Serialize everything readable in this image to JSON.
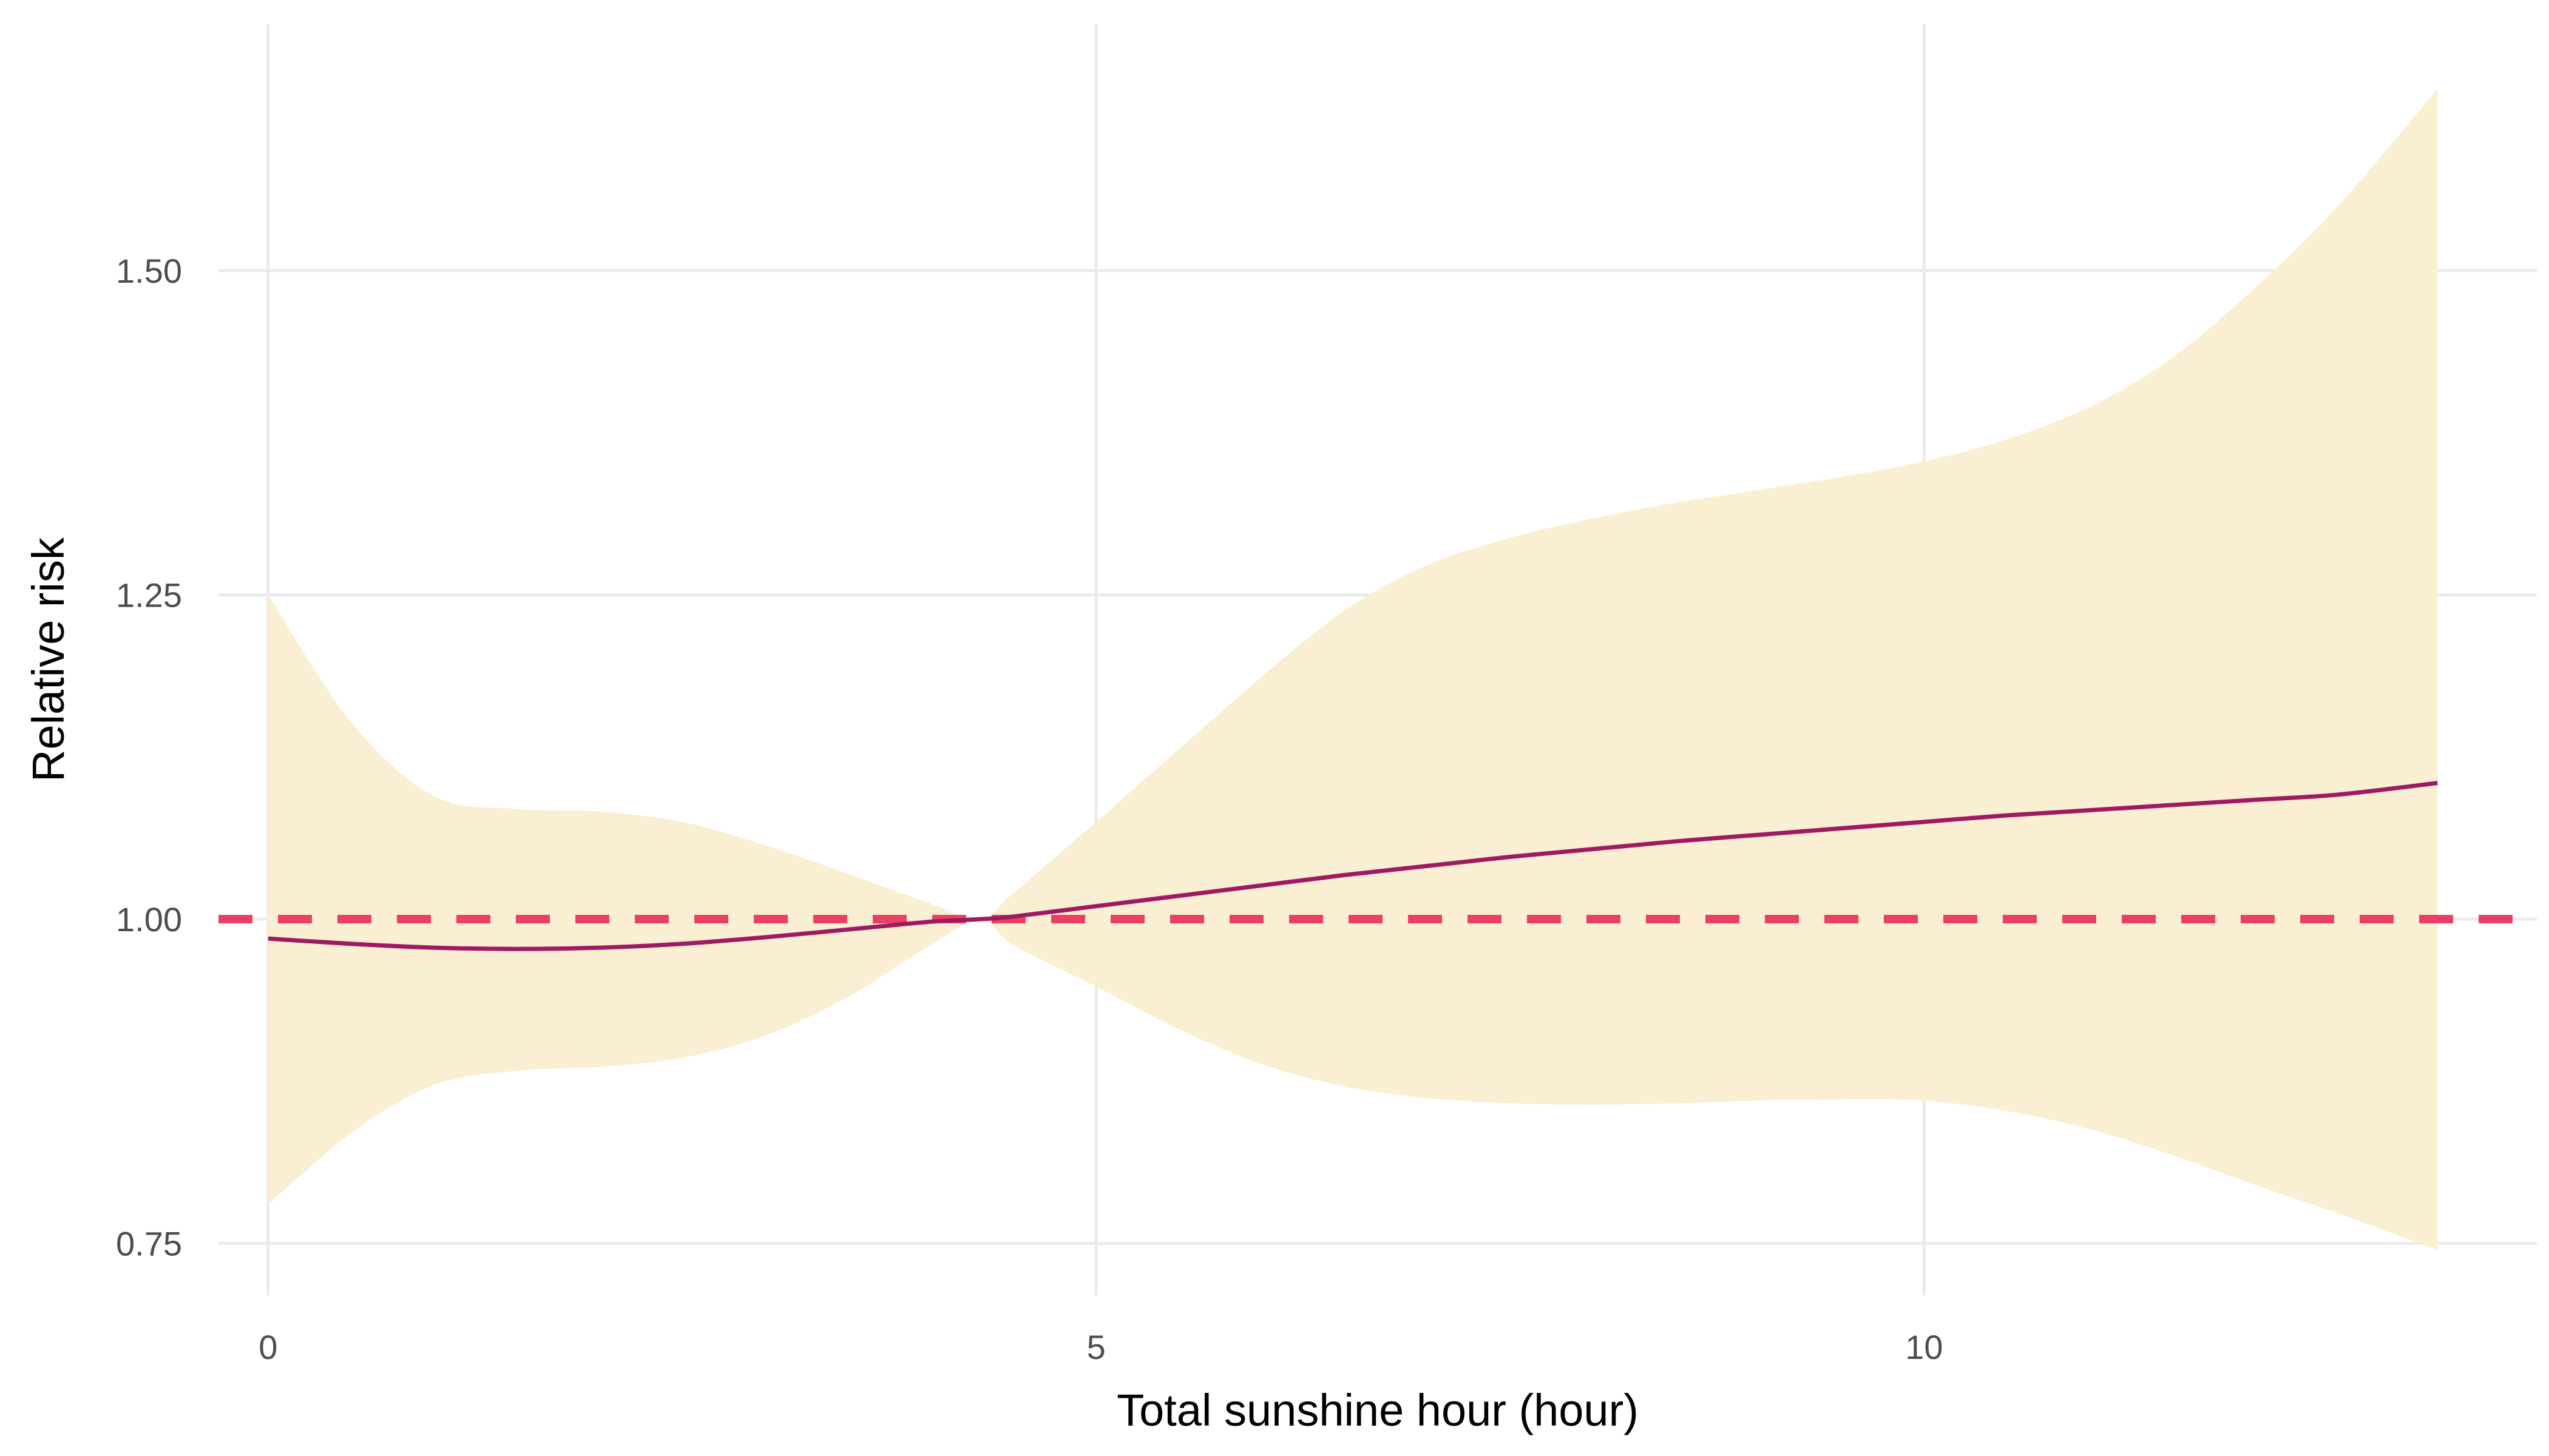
{
  "chart_data": {
    "type": "line",
    "title": "",
    "xlabel": "Total sunshine hour (hour)",
    "ylabel": "Relative risk",
    "xlim": [
      -0.3,
      13.7
    ],
    "ylim": [
      0.71,
      1.69
    ],
    "x_ticks": [
      0,
      5,
      10
    ],
    "x_tick_labels": [
      "0",
      "5",
      "10"
    ],
    "y_ticks": [
      0.75,
      1.0,
      1.25,
      1.5
    ],
    "y_tick_labels": [
      "0.75",
      "1.00",
      "1.25",
      "1.50"
    ],
    "grid": true,
    "reference_line": {
      "y": 1.0,
      "style": "dashed",
      "color": "#e8204f"
    },
    "series": [
      {
        "x": [
          0,
          0.5,
          1,
          1.5,
          2,
          2.5,
          3,
          3.5,
          4,
          4.3,
          4.5,
          5,
          5.5,
          6,
          6.5,
          7,
          7.5,
          8,
          8.5,
          9,
          9.5,
          10,
          10.5,
          11,
          11.5,
          12,
          12.5,
          13.1
        ],
        "y": [
          0.985,
          0.981,
          0.978,
          0.977,
          0.978,
          0.981,
          0.986,
          0.992,
          0.998,
          1.0,
          1.002,
          1.01,
          1.018,
          1.026,
          1.034,
          1.041,
          1.048,
          1.054,
          1.06,
          1.065,
          1.07,
          1.075,
          1.08,
          1.084,
          1.088,
          1.092,
          1.096,
          1.105
        ],
        "color": "#a01a62",
        "ci_lower": [
          0.78,
          0.835,
          0.872,
          0.883,
          0.886,
          0.893,
          0.91,
          0.94,
          0.98,
          1.0,
          0.98,
          0.948,
          0.915,
          0.888,
          0.871,
          0.862,
          0.858,
          0.857,
          0.858,
          0.86,
          0.861,
          0.86,
          0.852,
          0.838,
          0.818,
          0.795,
          0.773,
          0.745
        ],
        "ci_upper": [
          1.25,
          1.152,
          1.095,
          1.085,
          1.083,
          1.075,
          1.057,
          1.035,
          1.012,
          1.0,
          1.02,
          1.075,
          1.131,
          1.187,
          1.238,
          1.273,
          1.294,
          1.309,
          1.321,
          1.331,
          1.341,
          1.353,
          1.37,
          1.395,
          1.433,
          1.487,
          1.55,
          1.64
        ],
        "ci_color": "#faefd3"
      }
    ]
  }
}
